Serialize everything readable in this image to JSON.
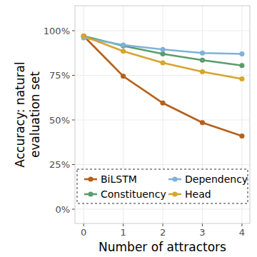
{
  "chart_data": {
    "type": "line",
    "x_label": "Number of attractors",
    "y_label": "Accuracy: natural\nevaluation set",
    "x": [
      0,
      1,
      2,
      3,
      4
    ],
    "series": [
      {
        "name": "BiLSTM",
        "color": "#b5601c",
        "marker": "circle",
        "values": [
          97,
          74.5,
          59.5,
          48.5,
          41
        ]
      },
      {
        "name": "Constituency",
        "color": "#5b9c6e",
        "marker": "circle",
        "values": [
          97,
          91.5,
          87,
          83.5,
          80.5
        ]
      },
      {
        "name": "Dependency",
        "color": "#7fb2d8",
        "marker": "circle",
        "values": [
          96,
          92,
          89.5,
          87.5,
          87
        ]
      },
      {
        "name": "Head",
        "color": "#d6a42f",
        "marker": "circle",
        "values": [
          97,
          88.5,
          82,
          77,
          73
        ]
      }
    ],
    "xlim": [
      -0.22,
      4.2
    ],
    "xticks": [
      0,
      1,
      2,
      3,
      4
    ],
    "ylim": [
      -8,
      114
    ],
    "yticks": [
      {
        "value": 0,
        "label": "0%"
      },
      {
        "value": 25,
        "label": "25%"
      },
      {
        "value": 50,
        "label": "50%"
      },
      {
        "value": 75,
        "label": "75%"
      },
      {
        "value": 100,
        "label": "100%"
      }
    ],
    "grid": true,
    "legend": "bottom"
  }
}
